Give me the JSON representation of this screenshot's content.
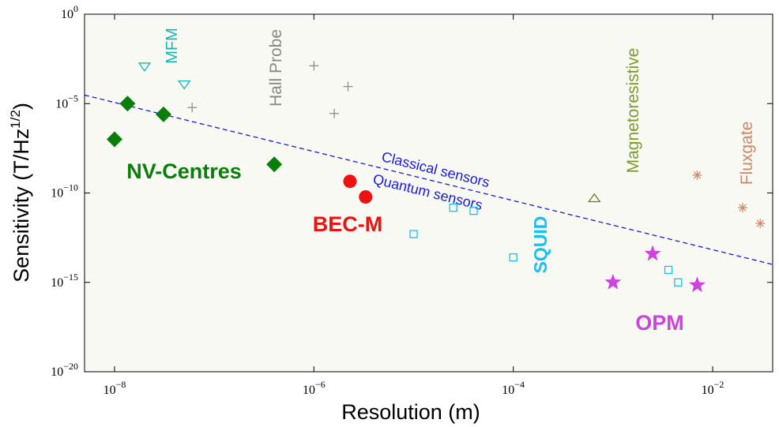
{
  "chart_data": {
    "type": "scatter",
    "title": "",
    "xlabel": "Resolution (m)",
    "ylabel": "Sensitivity (T/Hz^1/2)",
    "xscale": "log",
    "yscale": "log",
    "xlim": [
      5e-09,
      0.04
    ],
    "ylim": [
      1e-20,
      1
    ],
    "grid": false,
    "background": "#f9f9f4",
    "x_ticks": [
      {
        "value": 1e-08,
        "base": "10",
        "exp": "−8"
      },
      {
        "value": 1e-06,
        "base": "10",
        "exp": "−6"
      },
      {
        "value": 0.0001,
        "base": "10",
        "exp": "−4"
      },
      {
        "value": 0.01,
        "base": "10",
        "exp": "−2"
      }
    ],
    "y_ticks": [
      {
        "value": 1,
        "base": "10",
        "exp": "0"
      },
      {
        "value": 1e-05,
        "base": "10",
        "exp": "−5"
      },
      {
        "value": 1e-10,
        "base": "10",
        "exp": "−10"
      },
      {
        "value": 1e-15,
        "base": "10",
        "exp": "−15"
      },
      {
        "value": 1e-20,
        "base": "10",
        "exp": "−20"
      }
    ],
    "divider": {
      "style": "dashed",
      "color": "#1a1adb",
      "points": [
        [
          5e-09,
          3e-05
        ],
        [
          0.04,
          1e-14
        ]
      ],
      "label_above": "Classical sensors",
      "label_below": "Quantum sensors"
    },
    "series": [
      {
        "name": "NV-Centres",
        "marker": "diamond",
        "color": "#0a7d0a",
        "filled": true,
        "label_color": "#0a7d0a",
        "label_bold": true,
        "points": [
          [
            1e-08,
            1e-07
          ],
          [
            1.35e-08,
            1e-05
          ],
          [
            3.1e-08,
            2.5e-06
          ],
          [
            4e-07,
            4e-09
          ]
        ]
      },
      {
        "name": "MFM",
        "marker": "triangle-down",
        "color": "#14b4b4",
        "filled": false,
        "label_color": "#14b4b4",
        "label_bold": false,
        "points": [
          [
            2e-08,
            0.0012
          ],
          [
            5e-08,
            0.00012
          ]
        ]
      },
      {
        "name": "Hall Probe",
        "marker": "plus",
        "color": "#888888",
        "filled": false,
        "label_color": "#888888",
        "label_bold": false,
        "points": [
          [
            6e-08,
            6e-06
          ],
          [
            1e-06,
            0.0013
          ],
          [
            1.6e-06,
            2.8e-06
          ],
          [
            2.2e-06,
            9e-05
          ]
        ]
      },
      {
        "name": "BEC-M",
        "marker": "circle",
        "color": "#ee1111",
        "filled": true,
        "label_color": "#ee1111",
        "label_bold": true,
        "points": [
          [
            2.3e-06,
            4.5e-10
          ],
          [
            3.3e-06,
            6e-11
          ]
        ]
      },
      {
        "name": "SQUID",
        "marker": "square",
        "color": "#18c0f0",
        "filled": false,
        "label_color": "#18c0f0",
        "label_bold": true,
        "points": [
          [
            1e-05,
            5e-13
          ],
          [
            2.5e-05,
            1.5e-11
          ],
          [
            4e-05,
            1e-11
          ],
          [
            0.0001,
            2.5e-14
          ],
          [
            0.0036,
            5e-15
          ],
          [
            0.0045,
            1e-15
          ]
        ]
      },
      {
        "name": "OPM",
        "marker": "star",
        "color": "#cc44dd",
        "filled": true,
        "label_color": "#cc44dd",
        "label_bold": true,
        "points": [
          [
            0.001,
            1e-15
          ],
          [
            0.0025,
            4e-14
          ],
          [
            0.007,
            7e-16
          ]
        ]
      },
      {
        "name": "Magnetoresistive",
        "marker": "triangle-up",
        "color": "#6a7a22",
        "filled": false,
        "label_color": "#7d9a2a",
        "label_bold": false,
        "points": [
          [
            0.00065,
            5e-11
          ]
        ]
      },
      {
        "name": "Fluxgate",
        "marker": "asterisk",
        "color": "#cc8866",
        "filled": false,
        "label_color": "#cc8866",
        "label_bold": false,
        "points": [
          [
            0.007,
            1e-09
          ],
          [
            0.02,
            1.5e-11
          ],
          [
            0.03,
            2e-12
          ]
        ]
      }
    ]
  }
}
